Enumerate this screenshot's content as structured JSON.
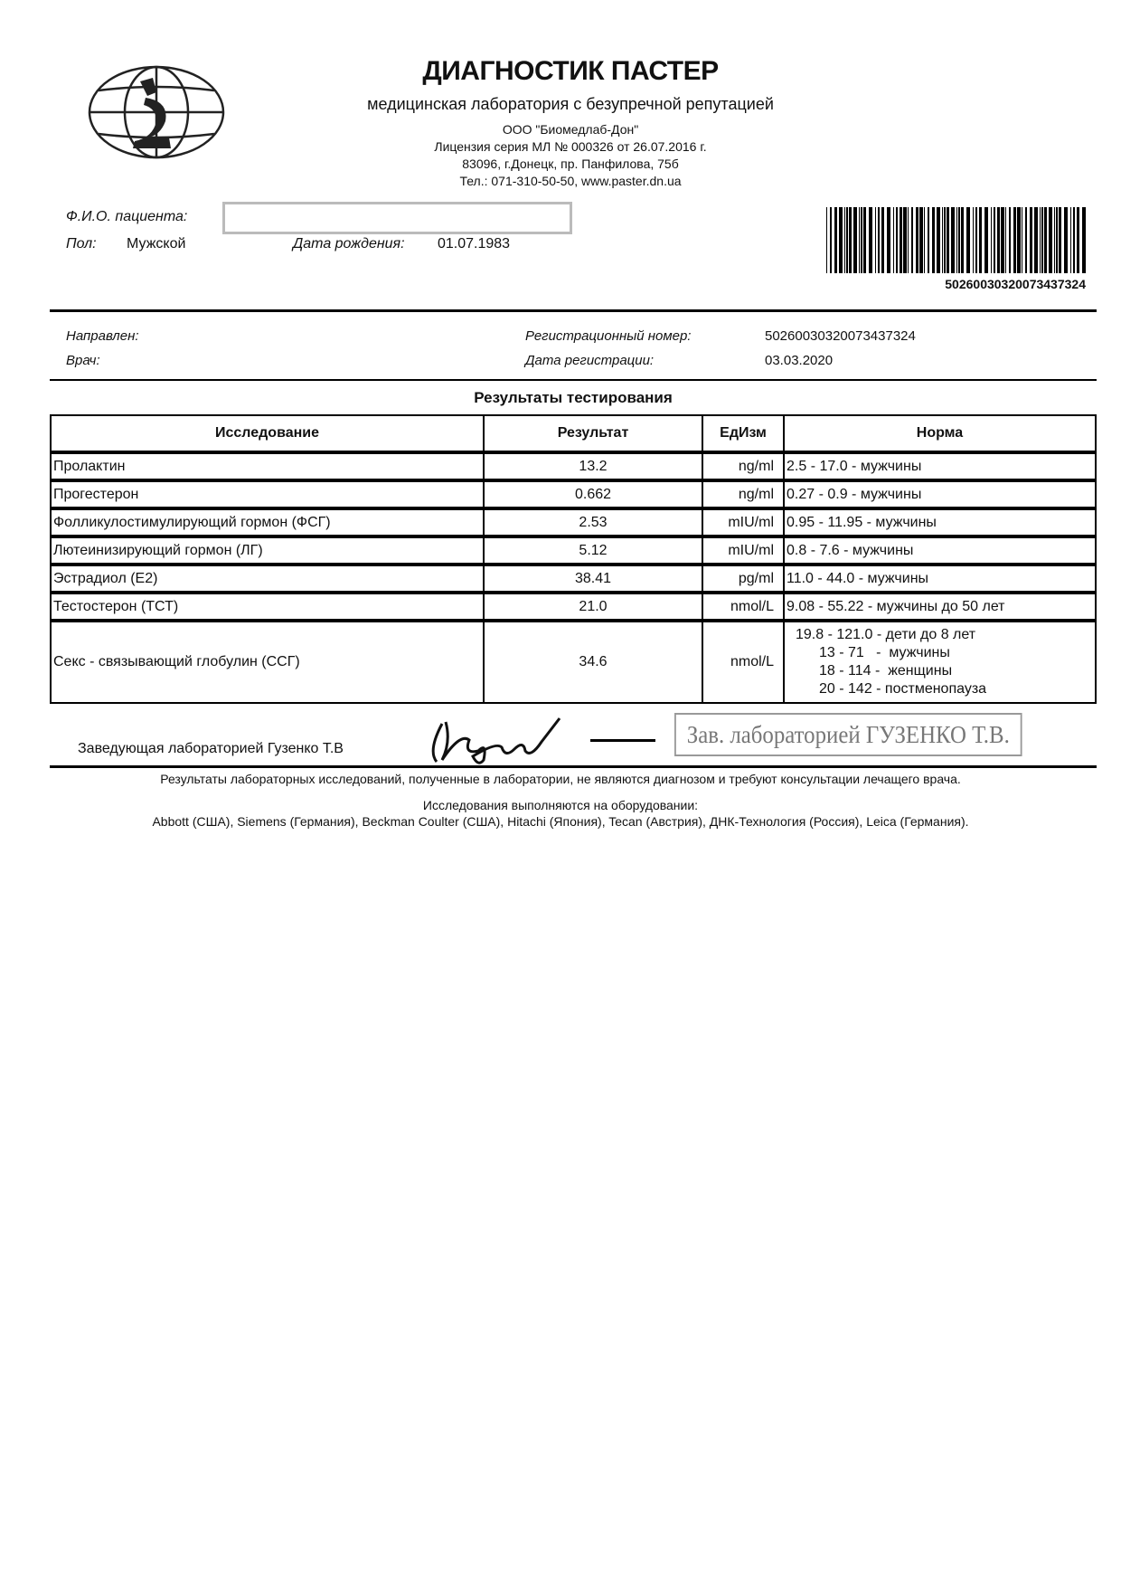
{
  "header": {
    "title": "ДИАГНОСТИК ПАСТЕР",
    "subtitle": "медицинская лаборатория с безупречной репутацией",
    "company": "ООО \"Биомедлаб-Дон\"",
    "license": "Лицензия серия МЛ № 000326 от 26.07.2016 г.",
    "address": "83096, г.Донецк, пр. Панфилова, 75б",
    "contacts": "Тел.: 071-310-50-50, www.paster.dn.ua",
    "logo_icon": "globe-microscope-logo"
  },
  "patient": {
    "fio_label": "Ф.И.О. пациента:",
    "fio_value": "",
    "sex_label": "Пол:",
    "sex_value": "Мужской",
    "dob_label": "Дата рождения:",
    "dob_value": "01.07.1983",
    "barcode_number": "50260030320073437324"
  },
  "registration": {
    "referred_label": "Направлен:",
    "doctor_label": "Врач:",
    "reg_number_label": "Регистрационный номер:",
    "reg_number_value": "50260030320073437324",
    "reg_date_label": "Дата регистрации:",
    "reg_date_value": "03.03.2020"
  },
  "results": {
    "title": "Результаты тестирования",
    "columns": [
      "Исследование",
      "Результат",
      "ЕдИзм",
      "Норма"
    ],
    "rows": [
      {
        "test": "Пролактин",
        "result": "13.2",
        "unit": "ng/ml",
        "norm": [
          "2.5 - 17.0 - мужчины"
        ]
      },
      {
        "test": "Прогестерон",
        "result": "0.662",
        "unit": "ng/ml",
        "norm": [
          "0.27 - 0.9 - мужчины"
        ]
      },
      {
        "test": "Фолликулостимулирующий гормон (ФСГ)",
        "result": "2.53",
        "unit": "mIU/ml",
        "norm": [
          "0.95 - 11.95 - мужчины"
        ]
      },
      {
        "test": "Лютеинизирующий гормон (ЛГ)",
        "result": "5.12",
        "unit": "mIU/ml",
        "norm": [
          "0.8 - 7.6 - мужчины"
        ]
      },
      {
        "test": "Эстрадиол (Е2)",
        "result": "38.41",
        "unit": "pg/ml",
        "norm": [
          "11.0 - 44.0 - мужчины"
        ]
      },
      {
        "test": "Тестостерон (ТСТ)",
        "result": "21.0",
        "unit": "nmol/L",
        "norm": [
          "9.08 - 55.22 - мужчины до 50 лет"
        ]
      },
      {
        "test": "Секс - связывающий глобулин (ССГ)",
        "result": "34.6",
        "unit": "nmol/L",
        "norm": [
          "19.8 - 121.0 - дети до 8 лет",
          "13 - 71   -  мужчины",
          "18 - 114 -  женщины",
          "20 - 142 - постменопауза"
        ]
      }
    ]
  },
  "signature": {
    "head_text": "Заведующая лабораторией Гузенко Т.В",
    "stamp_text": "Зав. лабораторией ГУЗЕНКО Т.В."
  },
  "footer": {
    "disclaimer": "Результаты лабораторных исследований, полученные в лаборатории, не являются диагнозом и требуют консультации лечащего врача.",
    "equipment_label": "Исследования выполняются на оборудовании:",
    "equipment_list": "Abbott (США), Siemens (Германия), Beckman Coulter (США), Hitachi (Япония), Tecan (Австрия), ДНК-Технология (Россия), Leica (Германия)."
  }
}
